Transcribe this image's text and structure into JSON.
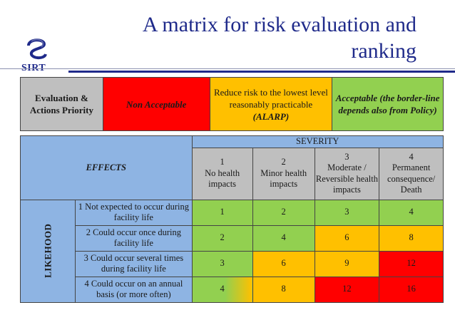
{
  "title": {
    "line1": "A matrix for risk evaluation and",
    "line2": "ranking"
  },
  "logo": {
    "brand": "SIRT",
    "icon": "sirt-logo-icon"
  },
  "legend": {
    "evaluation_label": "Evaluation & Actions Priority",
    "non_acceptable": "Non Acceptable",
    "alarp_text": "Reduce risk to the lowest level reasonably practicable",
    "alarp_abbr": "(ALARP)",
    "acceptable": "Acceptable (the border-line depends also from Policy)"
  },
  "matrix": {
    "effects_label": "EFFECTS",
    "severity_label": "SEVERITY",
    "likehood_label": "LIKEHOOD",
    "severity": [
      {
        "num": "1",
        "label": "No health impacts"
      },
      {
        "num": "2",
        "label": "Minor health impacts"
      },
      {
        "num": "3",
        "label": "Moderate / Reversible health impacts"
      },
      {
        "num": "4",
        "label": "Permanent consequence/ Death"
      }
    ],
    "rows": [
      {
        "label": "1 Not expected to occur during facility life",
        "values": [
          "1",
          "2",
          "3",
          "4"
        ]
      },
      {
        "label": "2 Could occur once during facility life",
        "values": [
          "2",
          "4",
          "6",
          "8"
        ]
      },
      {
        "label": "3 Could occur several times during facility life",
        "values": [
          "3",
          "6",
          "9",
          "12"
        ]
      },
      {
        "label": "4 Could occur on an annual basis (or more often)",
        "values": [
          "4",
          "8",
          "12",
          "16"
        ]
      }
    ]
  },
  "colors": {
    "red": "#ff0000",
    "amber": "#ffc000",
    "green": "#92d050",
    "blue": "#8eb4e3",
    "gray": "#bfbfbf",
    "title": "#1f2a8a"
  }
}
